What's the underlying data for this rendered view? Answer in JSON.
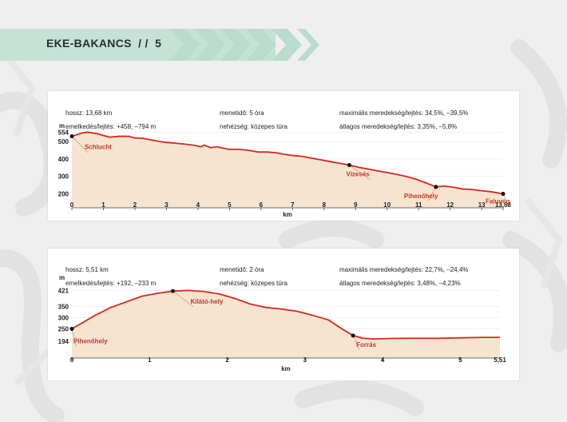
{
  "header": {
    "title": "EKE-BAKANCS",
    "separator": "/ /",
    "page_number": "5"
  },
  "colors": {
    "header_band": "#c4e2d6",
    "chevron": "#b9dccd",
    "profile_line": "#d9271c",
    "profile_fill": "#f7e4d0",
    "label_text": "#c0392b"
  },
  "chart_data": [
    {
      "type": "area",
      "info": {
        "hossz": "hossz: 13,68 km",
        "emelkedes": "emelkedés/lejtés: +458, –794 m",
        "menetido": "menetidő: 5 óra",
        "nehezseg": "nehézség: közepes túra",
        "max_meredekseg": "maximális meredekség/lejtés: 34,5%, –39,5%",
        "atl_meredekseg": "átlagos meredekség/lejtés: 3,35%, –5,8%"
      },
      "ylabel": "m",
      "xlabel": "km",
      "y_ticks": [
        "554",
        "500",
        "400",
        "300",
        "200"
      ],
      "y_tick_values": [
        554,
        500,
        400,
        300,
        200
      ],
      "ylim": [
        120,
        560
      ],
      "x_ticks": [
        "0",
        "1",
        "2",
        "3",
        "4",
        "5",
        "6",
        "7",
        "8",
        "9",
        "10",
        "11",
        "12",
        "13",
        "13,68"
      ],
      "x_tick_values": [
        0,
        1,
        2,
        3,
        4,
        5,
        6,
        7,
        8,
        9,
        10,
        11,
        12,
        13,
        13.68
      ],
      "xlim": [
        0,
        13.68
      ],
      "x": [
        0,
        0.3,
        0.5,
        0.8,
        1.0,
        1.2,
        1.5,
        1.8,
        2.0,
        2.2,
        2.5,
        2.8,
        3.0,
        3.3,
        3.6,
        3.9,
        4.1,
        4.2,
        4.3,
        4.4,
        4.6,
        4.8,
        5.0,
        5.3,
        5.6,
        5.9,
        6.2,
        6.5,
        6.8,
        7.0,
        7.3,
        7.6,
        7.9,
        8.2,
        8.5,
        8.8,
        9.1,
        9.4,
        9.7,
        10.0,
        10.3,
        10.6,
        10.9,
        11.2,
        11.55,
        11.8,
        12.1,
        12.4,
        12.7,
        13.0,
        13.3,
        13.68
      ],
      "y": [
        530,
        548,
        554,
        545,
        535,
        525,
        530,
        530,
        520,
        520,
        510,
        500,
        495,
        490,
        485,
        478,
        470,
        480,
        472,
        465,
        470,
        462,
        455,
        455,
        450,
        440,
        440,
        435,
        425,
        420,
        415,
        405,
        395,
        385,
        375,
        365,
        352,
        342,
        332,
        322,
        312,
        300,
        285,
        265,
        240,
        245,
        238,
        228,
        225,
        218,
        212,
        200
      ],
      "points": [
        {
          "label": "Schlucht",
          "x": 0,
          "y": 530
        },
        {
          "label": "Vízesés",
          "x": 8.8,
          "y": 365
        },
        {
          "label": "Pihenőhely",
          "x": 11.55,
          "y": 240
        },
        {
          "label": "Faluvég",
          "x": 13.68,
          "y": 200
        }
      ]
    },
    {
      "type": "area",
      "info": {
        "hossz": "hossz: 5,51 km",
        "emelkedes": "emelkedés/lejtés: +192, –233 m",
        "menetido": "menetidő: 2 óra",
        "nehezseg": "nehézség: közepes túra",
        "max_meredekseg": "maximális meredekség/lejtés: 22,7%, –24,4%",
        "atl_meredekseg": "átlagos meredekség/lejtés: 3,48%, –4,23%"
      },
      "ylabel": "m",
      "xlabel": "km",
      "y_ticks": [
        "421",
        "350",
        "300",
        "250",
        "194"
      ],
      "y_tick_values": [
        421,
        350,
        300,
        250,
        194
      ],
      "ylim": [
        120,
        440
      ],
      "x_ticks": [
        "0",
        "1",
        "2",
        "3",
        "4",
        "5",
        "5,51"
      ],
      "x_tick_values": [
        0,
        1,
        2,
        3,
        4,
        5,
        5.51
      ],
      "xlim": [
        0,
        5.51
      ],
      "x": [
        0,
        0.15,
        0.3,
        0.5,
        0.7,
        0.9,
        1.1,
        1.3,
        1.5,
        1.7,
        1.9,
        2.1,
        2.3,
        2.5,
        2.7,
        2.9,
        3.1,
        3.3,
        3.5,
        3.62,
        3.75,
        3.9,
        4.1,
        4.4,
        4.7,
        5.0,
        5.3,
        5.51
      ],
      "y": [
        250,
        280,
        310,
        345,
        370,
        395,
        408,
        418,
        421,
        416,
        405,
        385,
        360,
        345,
        338,
        328,
        310,
        290,
        245,
        220,
        208,
        205,
        207,
        208,
        208,
        210,
        212,
        212
      ],
      "points": [
        {
          "label": "Pihenőhely",
          "x": 0,
          "y": 250
        },
        {
          "label": "Kilátó-hely",
          "x": 1.3,
          "y": 418
        },
        {
          "label": "Forrás",
          "x": 3.62,
          "y": 220
        }
      ]
    }
  ]
}
